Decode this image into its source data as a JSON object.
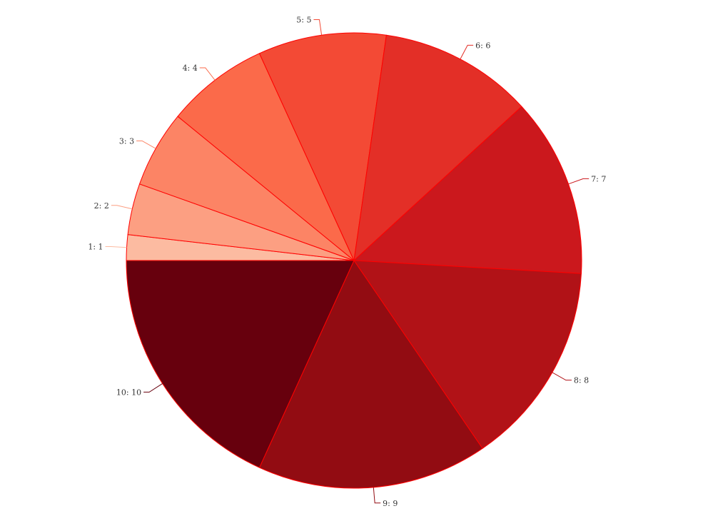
{
  "chart_data": {
    "type": "pie",
    "categories": [
      "1",
      "2",
      "3",
      "4",
      "5",
      "6",
      "7",
      "8",
      "9",
      "10"
    ],
    "values": [
      1,
      2,
      3,
      4,
      5,
      6,
      7,
      8,
      9,
      10
    ],
    "labels": [
      "1: 1",
      "2: 2",
      "3: 3",
      "4: 4",
      "5: 5",
      "6: 6",
      "7: 7",
      "8: 8",
      "9: 9",
      "10: 10"
    ],
    "colors": [
      "#fcbba1",
      "#fc9f82",
      "#fc8465",
      "#fb6a4a",
      "#f34a35",
      "#e32f27",
      "#cb181d",
      "#b11217",
      "#920c12",
      "#67000d"
    ],
    "slice_border_color": "#ff0000",
    "label_color": "#333333",
    "start": "left, clockwise",
    "legend": "none"
  }
}
